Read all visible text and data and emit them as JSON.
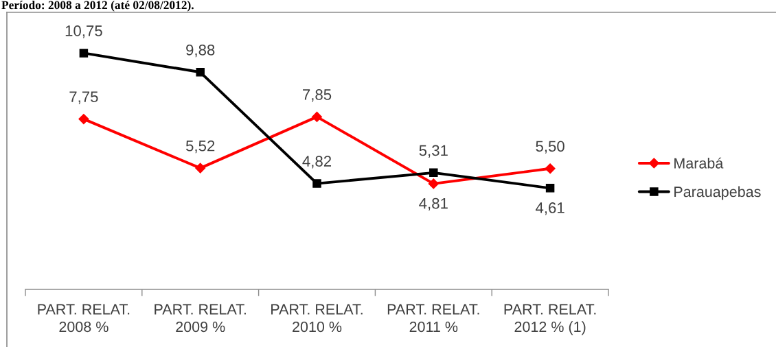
{
  "chart_data": {
    "type": "line",
    "title": "Período: 2008 a 2012 (até 02/08/2012).",
    "categories": [
      "PART. RELAT.\n2008 %",
      "PART. RELAT.\n2009 %",
      "PART. RELAT.\n2010 %",
      "PART. RELAT.\n2011 %",
      "PART. RELAT.\n2012 % (1)"
    ],
    "series": [
      {
        "name": "Marabá",
        "color": "#ff0000",
        "marker": "diamond",
        "values": [
          7.75,
          5.52,
          7.85,
          4.81,
          5.5
        ],
        "value_labels": [
          "7,75",
          "5,52",
          "7,85",
          "4,81",
          "5,50"
        ]
      },
      {
        "name": "Parauapebas",
        "color": "#000000",
        "marker": "square",
        "values": [
          10.75,
          9.88,
          4.82,
          5.31,
          4.61
        ],
        "value_labels": [
          "10,75",
          "9,88",
          "4,82",
          "5,31",
          "4,61"
        ]
      }
    ],
    "legend": "right",
    "grid": false,
    "line_style": "solid"
  }
}
